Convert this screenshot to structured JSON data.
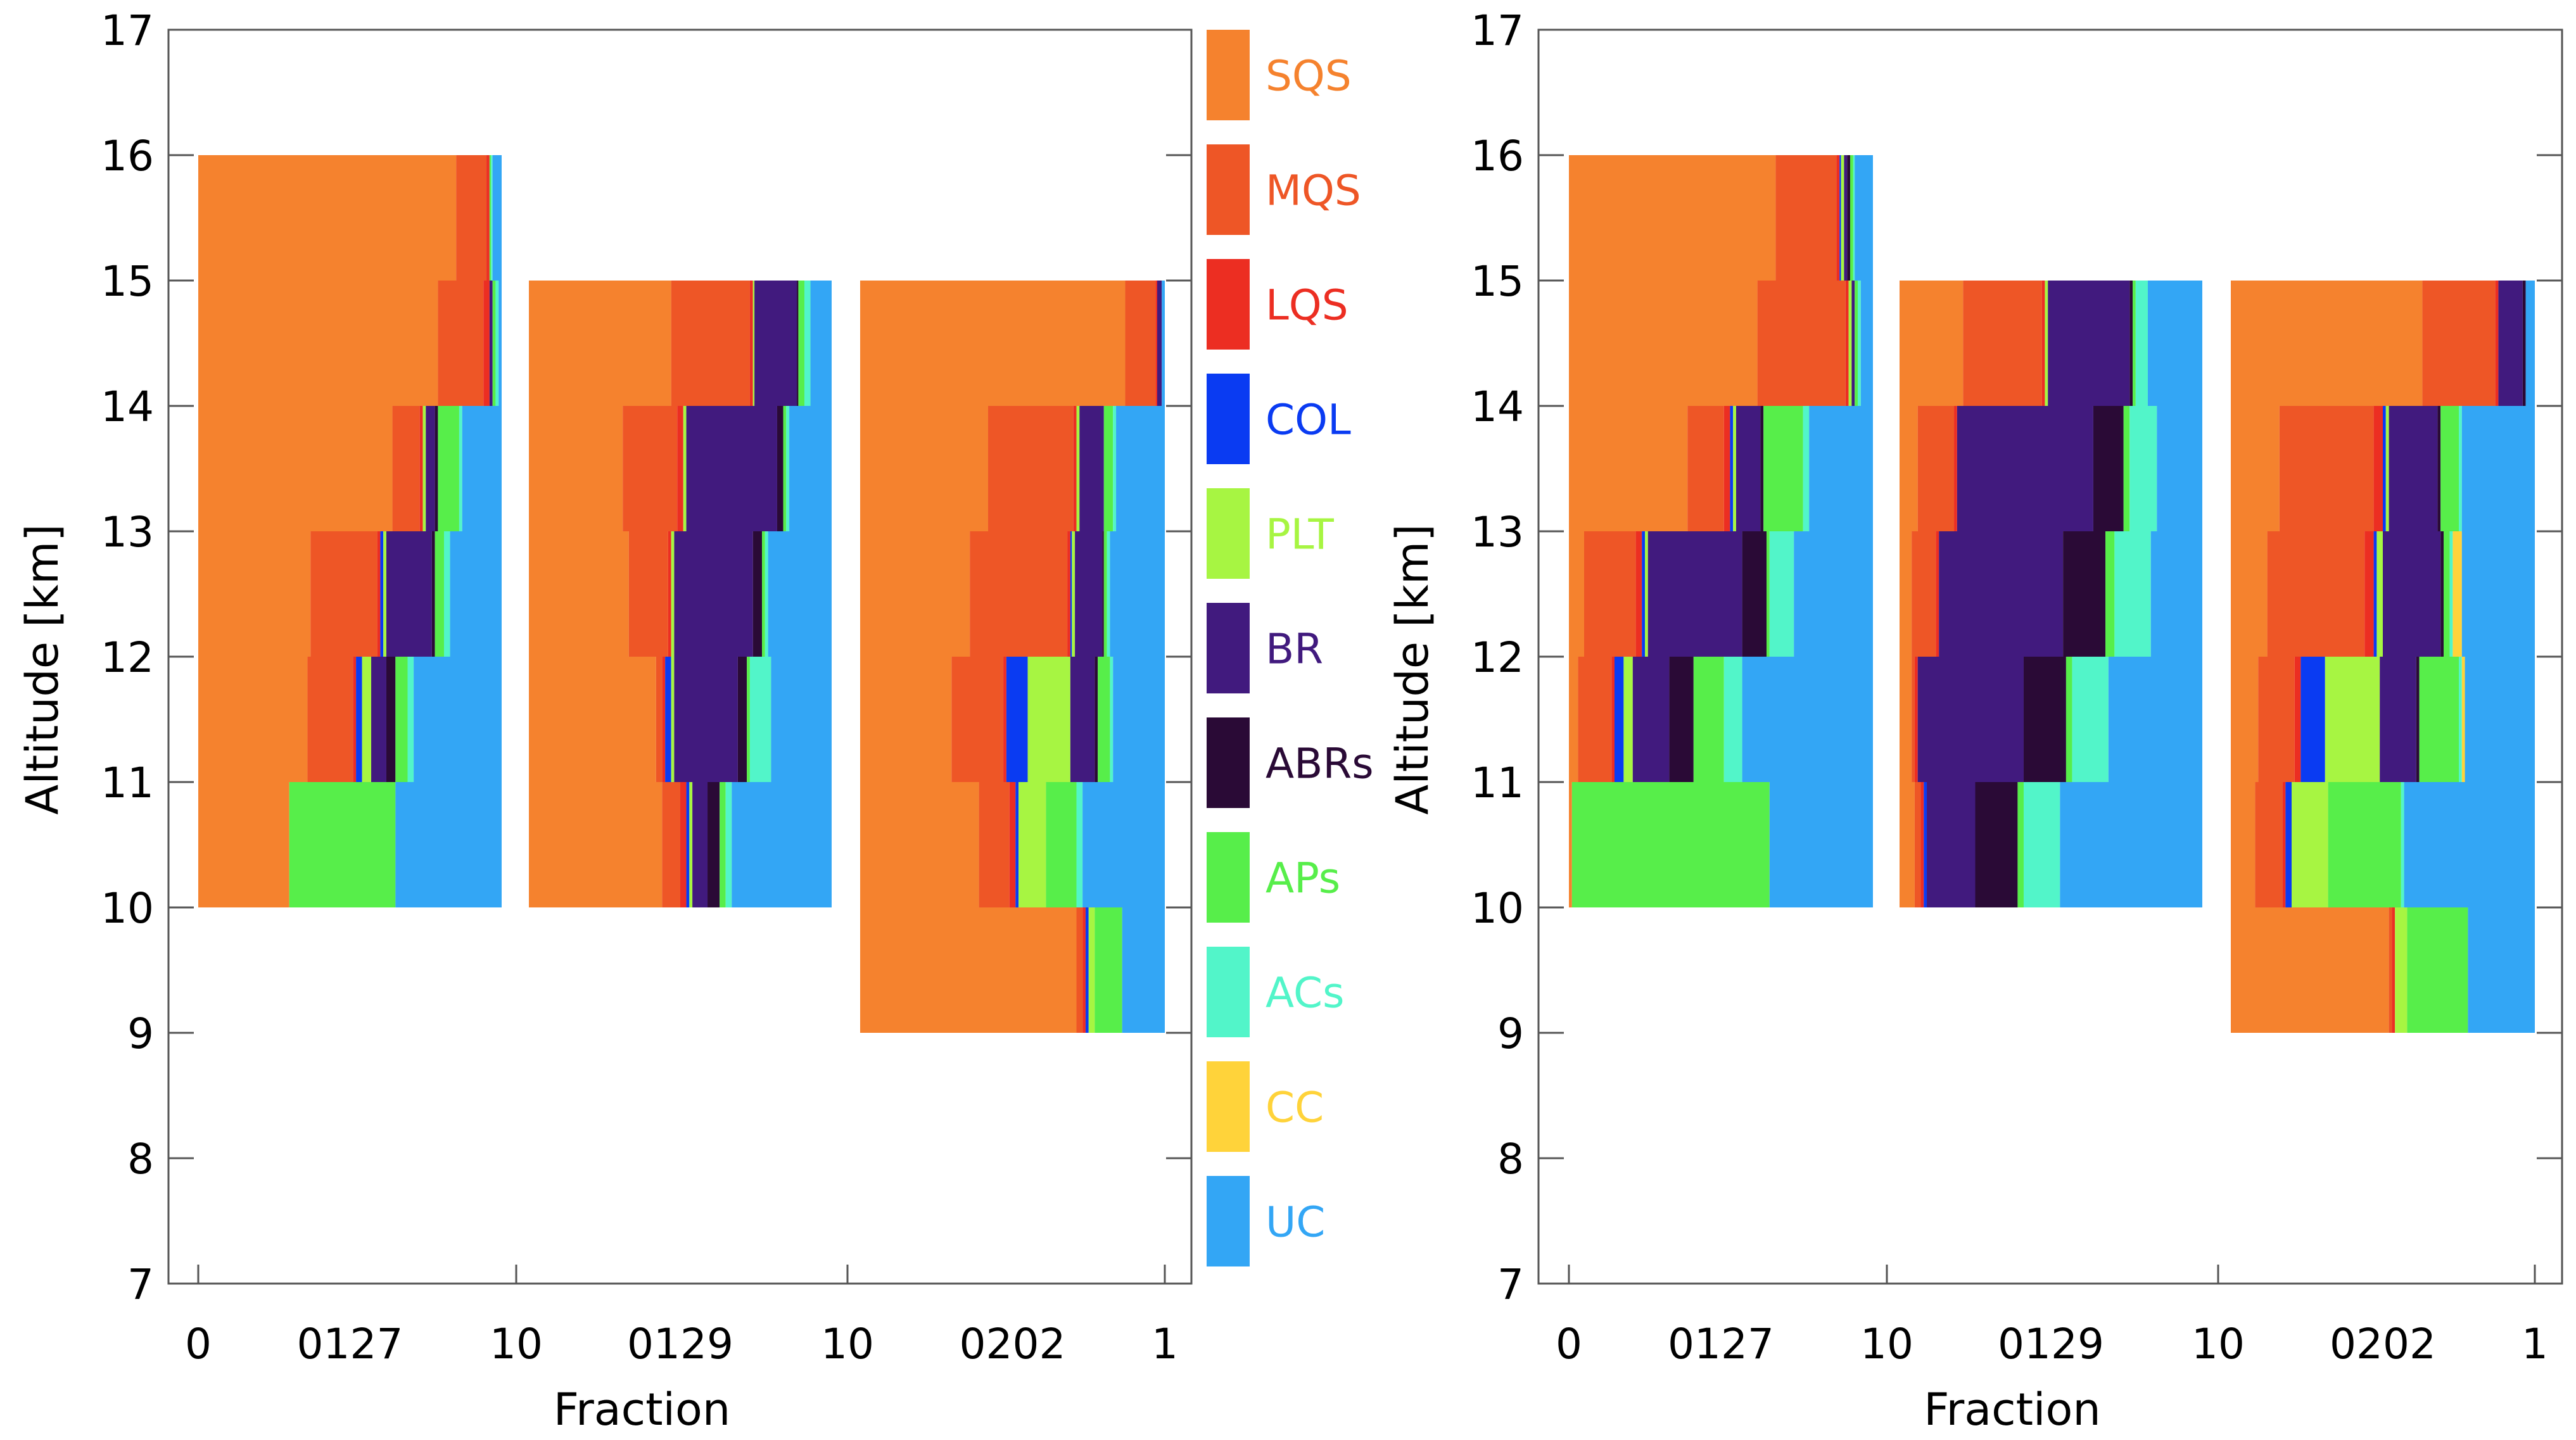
{
  "chart_data": {
    "type": "stacked-bar",
    "title": "",
    "xlabel": "Fraction",
    "ylabel": "Altitude [km]",
    "ylim": [
      7,
      17
    ],
    "yticks": [
      "7",
      "8",
      "9",
      "10",
      "11",
      "12",
      "13",
      "14",
      "15",
      "16",
      "17"
    ],
    "xticks": [
      "0",
      "10",
      "10",
      "1"
    ],
    "group_labels": [
      "0127",
      "0129",
      "0202"
    ],
    "categories": [
      {
        "name": "SQS",
        "color": "#F5822E"
      },
      {
        "name": "MQS",
        "color": "#EE5626"
      },
      {
        "name": "LQS",
        "color": "#EC2E22"
      },
      {
        "name": "COL",
        "color": "#0A3BF2"
      },
      {
        "name": "PLT",
        "color": "#A7F542"
      },
      {
        "name": "BR",
        "color": "#411A7E"
      },
      {
        "name": "ABRs",
        "color": "#2A0A36"
      },
      {
        "name": "APs",
        "color": "#57EE4A"
      },
      {
        "name": "ACs",
        "color": "#52F5C9"
      },
      {
        "name": "CC",
        "color": "#FFD33A"
      },
      {
        "name": "UC",
        "color": "#33A6F5"
      }
    ],
    "panels": [
      {
        "groups": [
          {
            "label": "0127",
            "layers": [
              {
                "alt": [
                  15,
                  16
                ],
                "values": [
                  0.85,
                  0.1,
                  0.01,
                  0,
                  0,
                  0,
                  0,
                  0.005,
                  0.005,
                  0,
                  0.03
                ]
              },
              {
                "alt": [
                  14,
                  15
                ],
                "values": [
                  0.79,
                  0.15,
                  0.02,
                  0,
                  0,
                  0.01,
                  0,
                  0.01,
                  0.01,
                  0,
                  0.01
                ]
              },
              {
                "alt": [
                  13,
                  14
                ],
                "values": [
                  0.64,
                  0.09,
                  0.01,
                  0,
                  0.01,
                  0.03,
                  0.01,
                  0.07,
                  0.01,
                  0,
                  0.13
                ]
              },
              {
                "alt": [
                  12,
                  13
                ],
                "values": [
                  0.37,
                  0.22,
                  0.01,
                  0.01,
                  0.01,
                  0.15,
                  0.01,
                  0.03,
                  0.02,
                  0,
                  0.17
                ]
              },
              {
                "alt": [
                  11,
                  12
                ],
                "values": [
                  0.36,
                  0.15,
                  0.01,
                  0.02,
                  0.03,
                  0.05,
                  0.03,
                  0.04,
                  0.02,
                  0,
                  0.29
                ]
              },
              {
                "alt": [
                  10,
                  11
                ],
                "values": [
                  0.3,
                  0,
                  0,
                  0,
                  0,
                  0,
                  0,
                  0.35,
                  0,
                  0,
                  0.35
                ]
              }
            ]
          },
          {
            "label": "0129",
            "layers": [
              {
                "alt": [
                  14,
                  15
                ],
                "values": [
                  0.47,
                  0.26,
                  0.01,
                  0,
                  0.005,
                  0.14,
                  0.005,
                  0.02,
                  0.02,
                  0,
                  0.07
                ]
              },
              {
                "alt": [
                  13,
                  14
                ],
                "values": [
                  0.31,
                  0.18,
                  0.02,
                  0,
                  0.01,
                  0.3,
                  0.02,
                  0.01,
                  0.01,
                  0,
                  0.14
                ]
              },
              {
                "alt": [
                  12,
                  13
                ],
                "values": [
                  0.33,
                  0.13,
                  0.01,
                  0,
                  0.01,
                  0.26,
                  0.03,
                  0.01,
                  0.01,
                  0,
                  0.22
                ]
              },
              {
                "alt": [
                  11,
                  12
                ],
                "values": [
                  0.42,
                  0.02,
                  0.01,
                  0.02,
                  0.01,
                  0.21,
                  0.03,
                  0.01,
                  0.07,
                  0,
                  0.2
                ]
              },
              {
                "alt": [
                  10,
                  11
                ],
                "values": [
                  0.44,
                  0.06,
                  0.02,
                  0.01,
                  0.01,
                  0.05,
                  0.04,
                  0.02,
                  0.02,
                  0,
                  0.33
                ]
              }
            ]
          },
          {
            "label": "0202",
            "layers": [
              {
                "alt": [
                  14,
                  15
                ],
                "values": [
                  0.87,
                  0.1,
                  0.005,
                  0,
                  0,
                  0.015,
                  0,
                  0,
                  0,
                  0,
                  0.01
                ]
              },
              {
                "alt": [
                  13,
                  14
                ],
                "values": [
                  0.42,
                  0.28,
                  0.01,
                  0,
                  0.01,
                  0.08,
                  0,
                  0.03,
                  0.01,
                  0,
                  0.16
                ]
              },
              {
                "alt": [
                  12,
                  13
                ],
                "values": [
                  0.36,
                  0.32,
                  0.01,
                  0.005,
                  0.01,
                  0.09,
                  0.005,
                  0.01,
                  0.01,
                  0,
                  0.19
                ]
              },
              {
                "alt": [
                  11,
                  12
                ],
                "values": [
                  0.3,
                  0.17,
                  0.01,
                  0.07,
                  0.14,
                  0.08,
                  0.01,
                  0.04,
                  0.01,
                  0,
                  0.17
                ]
              },
              {
                "alt": [
                  10,
                  11
                ],
                "values": [
                  0.39,
                  0.1,
                  0.02,
                  0.01,
                  0.09,
                  0,
                  0,
                  0.1,
                  0.02,
                  0,
                  0.27
                ]
              },
              {
                "alt": [
                  9,
                  10
                ],
                "values": [
                  0.71,
                  0.02,
                  0.01,
                  0.01,
                  0.02,
                  0,
                  0,
                  0.09,
                  0,
                  0,
                  0.14
                ]
              }
            ]
          }
        ]
      },
      {
        "groups": [
          {
            "label": "0127",
            "layers": [
              {
                "alt": [
                  15,
                  16
                ],
                "values": [
                  0.68,
                  0.2,
                  0.01,
                  0.005,
                  0.01,
                  0.01,
                  0.01,
                  0.01,
                  0.005,
                  0,
                  0.06
                ]
              },
              {
                "alt": [
                  14,
                  15
                ],
                "values": [
                  0.62,
                  0.29,
                  0.01,
                  0,
                  0.01,
                  0.01,
                  0,
                  0.01,
                  0.01,
                  0,
                  0.04
                ]
              },
              {
                "alt": [
                  13,
                  14
                ],
                "values": [
                  0.39,
                  0.12,
                  0.02,
                  0.01,
                  0.01,
                  0.08,
                  0.01,
                  0.13,
                  0.02,
                  0,
                  0.21
                ]
              },
              {
                "alt": [
                  12,
                  13
                ],
                "values": [
                  0.05,
                  0.17,
                  0.02,
                  0.01,
                  0.01,
                  0.31,
                  0.08,
                  0.01,
                  0.08,
                  0,
                  0.26
                ]
              },
              {
                "alt": [
                  11,
                  12
                ],
                "values": [
                  0.03,
                  0.11,
                  0.01,
                  0.03,
                  0.03,
                  0.12,
                  0.08,
                  0.1,
                  0.06,
                  0,
                  0.43
                ]
              },
              {
                "alt": [
                  10,
                  11
                ],
                "values": [
                  0.01,
                  0,
                  0,
                  0,
                  0,
                  0,
                  0,
                  0.65,
                  0,
                  0,
                  0.34
                ]
              }
            ]
          },
          {
            "label": "0129",
            "layers": [
              {
                "alt": [
                  14,
                  15
                ],
                "values": [
                  0.21,
                  0.26,
                  0.01,
                  0,
                  0.01,
                  0.27,
                  0.01,
                  0.01,
                  0.04,
                  0,
                  0.18
                ]
              },
              {
                "alt": [
                  13,
                  14
                ],
                "values": [
                  0.06,
                  0.12,
                  0.01,
                  0,
                  0,
                  0.45,
                  0.1,
                  0.02,
                  0.09,
                  0,
                  0.15
                ]
              },
              {
                "alt": [
                  12,
                  13
                ],
                "values": [
                  0.04,
                  0.08,
                  0.01,
                  0,
                  0,
                  0.41,
                  0.14,
                  0.03,
                  0.12,
                  0,
                  0.17
                ]
              },
              {
                "alt": [
                  11,
                  12
                ],
                "values": [
                  0.04,
                  0.01,
                  0.01,
                  0,
                  0,
                  0.35,
                  0.14,
                  0.02,
                  0.12,
                  0,
                  0.31
                ]
              },
              {
                "alt": [
                  10,
                  11
                ],
                "values": [
                  0.05,
                  0.02,
                  0.01,
                  0.01,
                  0,
                  0.16,
                  0.14,
                  0.02,
                  0.12,
                  0,
                  0.47
                ]
              }
            ]
          },
          {
            "label": "0202",
            "layers": [
              {
                "alt": [
                  14,
                  15
                ],
                "values": [
                  0.63,
                  0.24,
                  0.01,
                  0,
                  0,
                  0.08,
                  0.01,
                  0,
                  0,
                  0,
                  0.03
                ]
              },
              {
                "alt": [
                  13,
                  14
                ],
                "values": [
                  0.16,
                  0.31,
                  0.03,
                  0.01,
                  0.01,
                  0.16,
                  0.01,
                  0.06,
                  0.01,
                  0,
                  0.24
                ]
              },
              {
                "alt": [
                  12,
                  13
                ],
                "values": [
                  0.12,
                  0.32,
                  0.03,
                  0.01,
                  0.02,
                  0.19,
                  0.01,
                  0.02,
                  0.01,
                  0.03,
                  0.24
                ]
              },
              {
                "alt": [
                  11,
                  12
                ],
                "values": [
                  0.09,
                  0.12,
                  0.02,
                  0.08,
                  0.18,
                  0.12,
                  0.01,
                  0.13,
                  0.01,
                  0.01,
                  0.23
                ]
              },
              {
                "alt": [
                  10,
                  11
                ],
                "values": [
                  0.08,
                  0.09,
                  0.01,
                  0.02,
                  0.12,
                  0,
                  0,
                  0.24,
                  0.01,
                  0,
                  0.43
                ]
              },
              {
                "alt": [
                  9,
                  10
                ],
                "values": [
                  0.52,
                  0.01,
                  0.01,
                  0,
                  0.04,
                  0,
                  0,
                  0.2,
                  0,
                  0,
                  0.22
                ]
              }
            ]
          }
        ]
      }
    ]
  }
}
